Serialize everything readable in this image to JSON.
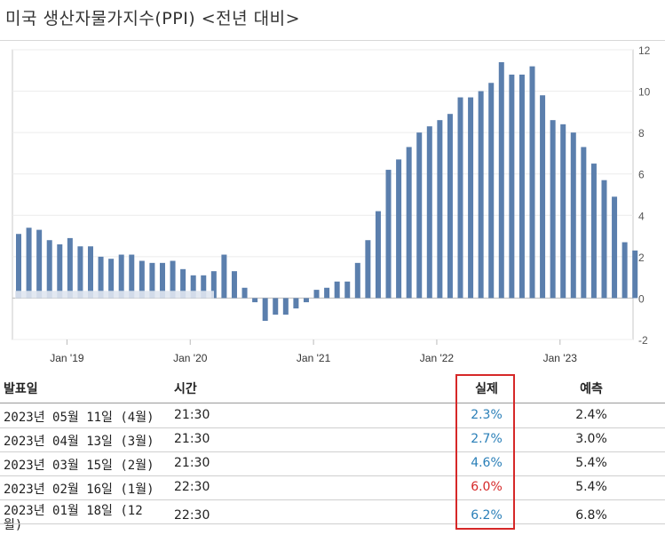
{
  "title": "미국 생산자물가지수(PPI) <전년 대비>",
  "chart_data": {
    "type": "bar",
    "y_ticks": [
      "12",
      "10",
      "8",
      "6",
      "4",
      "2",
      "0",
      "-2"
    ],
    "ylim": [
      -2,
      12
    ],
    "x_tick_labels": [
      "Jan '19",
      "Jan '20",
      "Jan '21",
      "Jan '22",
      "Jan '23"
    ],
    "grid": true,
    "bar_color": "#5b7fad",
    "values": [
      3.1,
      3.4,
      3.3,
      2.8,
      2.6,
      2.9,
      2.5,
      2.5,
      2.0,
      1.9,
      2.1,
      2.1,
      1.8,
      1.7,
      1.7,
      1.8,
      1.4,
      1.1,
      1.1,
      1.3,
      2.1,
      1.3,
      0.5,
      -0.2,
      -1.1,
      -0.8,
      -0.8,
      -0.5,
      -0.2,
      0.4,
      0.5,
      0.8,
      0.8,
      1.7,
      2.8,
      4.2,
      6.2,
      6.7,
      7.3,
      8.0,
      8.3,
      8.6,
      8.9,
      9.7,
      9.7,
      10.0,
      10.4,
      11.4,
      10.8,
      10.8,
      11.2,
      9.8,
      8.6,
      8.4,
      8.0,
      7.3,
      6.5,
      5.7,
      4.9,
      2.7,
      2.3
    ]
  },
  "table": {
    "headers": {
      "date": "발표일",
      "time": "시간",
      "actual": "실제",
      "forecast": "예측"
    },
    "rows": [
      {
        "date": "2023년 05월 11일 (4월)",
        "time": "21:30",
        "actual": "2.3%",
        "forecast": "2.4%",
        "actual_color": "#2a7fb8"
      },
      {
        "date": "2023년 04월 13일 (3월)",
        "time": "21:30",
        "actual": "2.7%",
        "forecast": "3.0%",
        "actual_color": "#2a7fb8"
      },
      {
        "date": "2023년 03월 15일 (2월)",
        "time": "21:30",
        "actual": "4.6%",
        "forecast": "5.4%",
        "actual_color": "#2a7fb8"
      },
      {
        "date": "2023년 02월 16일 (1월)",
        "time": "22:30",
        "actual": "6.0%",
        "forecast": "5.4%",
        "actual_color": "#d62828"
      },
      {
        "date": "2023년 01월 18일 (12",
        "date_line2": "월)",
        "time": "22:30",
        "actual": "6.2%",
        "forecast": "6.8%",
        "actual_color": "#2a7fb8"
      }
    ]
  }
}
